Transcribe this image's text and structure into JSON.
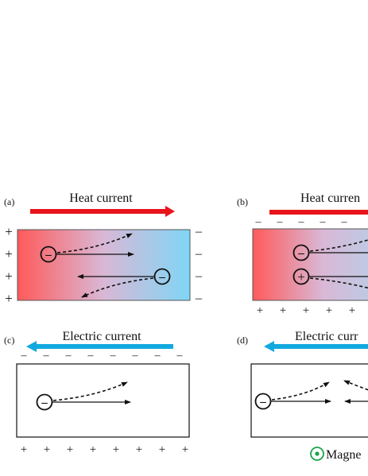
{
  "panels": {
    "a": {
      "label": "(a)",
      "title": "Heat current",
      "title_color": "#e8141c",
      "left_signs": [
        "+",
        "+",
        "+",
        "+"
      ],
      "right_signs": [
        "–",
        "–",
        "–",
        "–"
      ],
      "particles": [
        "–",
        "–"
      ]
    },
    "b": {
      "label": "(b)",
      "title": "Heat curren",
      "title_color": "#e8141c",
      "top_signs": [
        "–",
        "–",
        "–",
        "–",
        "–"
      ],
      "bottom_signs": [
        "+",
        "+",
        "+",
        "+",
        "+"
      ],
      "particles": [
        "–",
        "+"
      ]
    },
    "c": {
      "label": "(c)",
      "title": "Electric current",
      "title_color": "#12a9e0",
      "top_signs": [
        "–",
        "–",
        "–",
        "–",
        "–",
        "–",
        "–",
        "–"
      ],
      "bottom_signs": [
        "+",
        "+",
        "+",
        "+",
        "+",
        "+",
        "+",
        "+"
      ],
      "particles": [
        "–"
      ]
    },
    "d": {
      "label": "(d)",
      "title": "Electric curr",
      "title_color": "#12a9e0",
      "particles": [
        "–"
      ]
    }
  },
  "legend": {
    "text": "Magne",
    "icon": "magnetic-field-out-of-page-icon",
    "icon_color": "#1aa34a"
  },
  "colors": {
    "hot": "#ff5a5a",
    "cold": "#7fd6f5",
    "heat_arrow": "#e8141c",
    "electric_arrow": "#12a9e0"
  }
}
